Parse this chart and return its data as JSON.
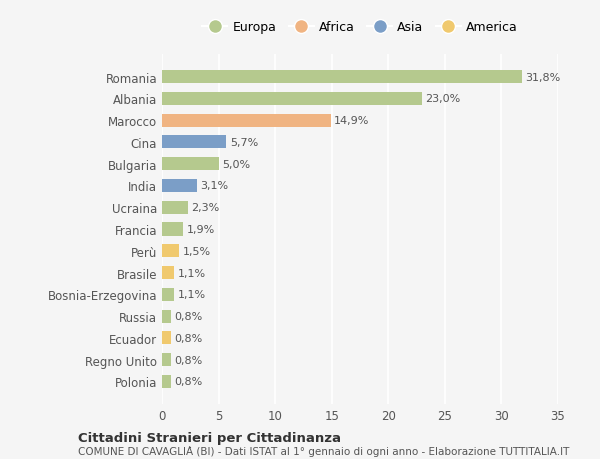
{
  "categories": [
    "Romania",
    "Albania",
    "Marocco",
    "Cina",
    "Bulgaria",
    "India",
    "Ucraina",
    "Francia",
    "Perù",
    "Brasile",
    "Bosnia-Erzegovina",
    "Russia",
    "Ecuador",
    "Regno Unito",
    "Polonia"
  ],
  "values": [
    31.8,
    23.0,
    14.9,
    5.7,
    5.0,
    3.1,
    2.3,
    1.9,
    1.5,
    1.1,
    1.1,
    0.8,
    0.8,
    0.8,
    0.8
  ],
  "labels": [
    "31,8%",
    "23,0%",
    "14,9%",
    "5,7%",
    "5,0%",
    "3,1%",
    "2,3%",
    "1,9%",
    "1,5%",
    "1,1%",
    "1,1%",
    "0,8%",
    "0,8%",
    "0,8%",
    "0,8%"
  ],
  "colors": [
    "#b5c98e",
    "#b5c98e",
    "#f0b482",
    "#7b9ec7",
    "#b5c98e",
    "#7b9ec7",
    "#b5c98e",
    "#b5c98e",
    "#f0c96e",
    "#f0c96e",
    "#b5c98e",
    "#b5c98e",
    "#f0c96e",
    "#b5c98e",
    "#b5c98e"
  ],
  "continents": [
    "Europa",
    "Africa",
    "Asia",
    "America"
  ],
  "legend_colors": [
    "#b5c98e",
    "#f0b482",
    "#7b9ec7",
    "#f0c96e"
  ],
  "background_color": "#f5f5f5",
  "title": "Cittadini Stranieri per Cittadinanza",
  "subtitle": "COMUNE DI CAVAGLIÀ (BI) - Dati ISTAT al 1° gennaio di ogni anno - Elaborazione TUTTITALIA.IT",
  "xlim": [
    0,
    35
  ],
  "xticks": [
    0,
    5,
    10,
    15,
    20,
    25,
    30,
    35
  ]
}
